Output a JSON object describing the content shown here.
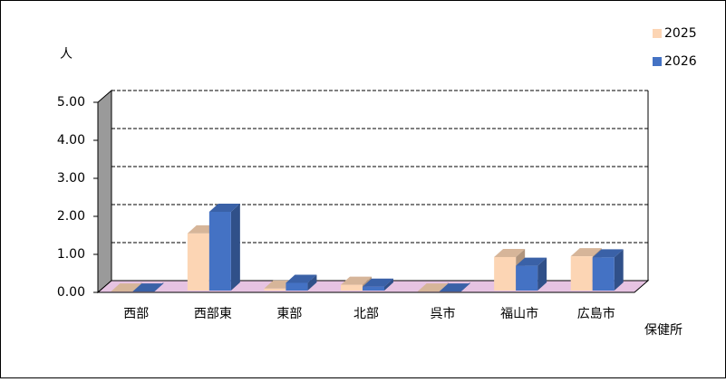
{
  "chart_data": {
    "type": "bar3d",
    "y_label": "人",
    "x_label": "保健所",
    "categories": [
      "西部",
      "西部東",
      "東部",
      "北部",
      "呉市",
      "福山市",
      "広島市"
    ],
    "series": [
      {
        "name": "2025",
        "color": "#fcd5b4",
        "values": [
          0.02,
          1.55,
          0.1,
          0.2,
          0.02,
          0.93,
          0.95
        ]
      },
      {
        "name": "2026",
        "color": "#4472c4",
        "values": [
          0.02,
          2.12,
          0.25,
          0.15,
          0.02,
          0.7,
          0.92
        ]
      }
    ],
    "ylim": [
      0,
      5
    ],
    "yticks": [
      {
        "value": 0,
        "label": "0.00"
      },
      {
        "value": 1,
        "label": "1.00"
      },
      {
        "value": 2,
        "label": "2.00"
      },
      {
        "value": 3,
        "label": "3.00"
      },
      {
        "value": 4,
        "label": "4.00"
      },
      {
        "value": 5,
        "label": "5.00"
      }
    ],
    "grid": true,
    "legend": "top-right"
  }
}
